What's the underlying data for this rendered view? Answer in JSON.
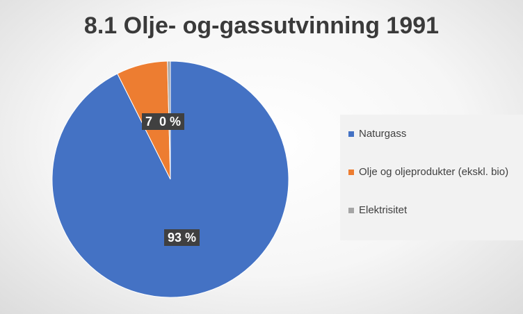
{
  "chart_data": {
    "type": "pie",
    "title": "8.1 Olje- og-gassutvinning 1991",
    "categories": [
      "Naturgass",
      "Olje og oljeprodukter (ekskl. bio)",
      "Elektrisitet"
    ],
    "values": [
      92.6,
      7.0,
      0.4
    ],
    "data_labels": [
      "93 %",
      "7 %",
      "0 %"
    ],
    "colors": [
      "#4472c4",
      "#ed7d31",
      "#a5a5a5"
    ],
    "legend_position": "right"
  }
}
